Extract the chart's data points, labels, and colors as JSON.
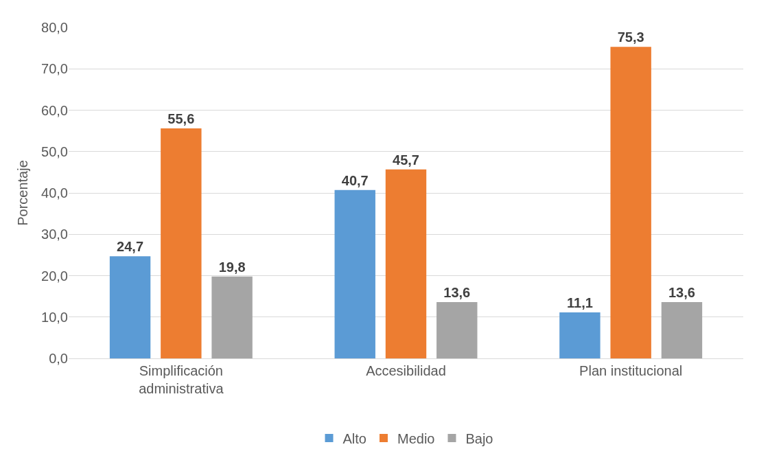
{
  "chart_data": {
    "type": "bar",
    "ylabel": "Porcentaje",
    "categories": [
      "Simplificación administrativa",
      "Accesibilidad",
      "Plan institucional"
    ],
    "series": [
      {
        "name": "Alto",
        "color": "#5b9bd5",
        "values": [
          24.7,
          40.7,
          11.1
        ],
        "value_labels": [
          "24,7",
          "40,7",
          "11,1"
        ]
      },
      {
        "name": "Medio",
        "color": "#ed7d31",
        "values": [
          55.6,
          45.7,
          75.3
        ],
        "value_labels": [
          "55,6",
          "45,7",
          "75,3"
        ]
      },
      {
        "name": "Bajo",
        "color": "#a5a5a5",
        "values": [
          19.8,
          13.6,
          13.6
        ],
        "value_labels": [
          "19,8",
          "13,6",
          "13,6"
        ]
      }
    ],
    "ylim": [
      0,
      80
    ],
    "yticks": [
      {
        "value": 0,
        "label": "0,0"
      },
      {
        "value": 10,
        "label": "10,0"
      },
      {
        "value": 20,
        "label": "20,0"
      },
      {
        "value": 30,
        "label": "30,0"
      },
      {
        "value": 40,
        "label": "40,0"
      },
      {
        "value": 50,
        "label": "50,0"
      },
      {
        "value": 60,
        "label": "60,0"
      },
      {
        "value": 70,
        "label": "70,0"
      },
      {
        "value": 80,
        "label": "80,0"
      }
    ],
    "grid": "y",
    "legend": "bottom"
  }
}
